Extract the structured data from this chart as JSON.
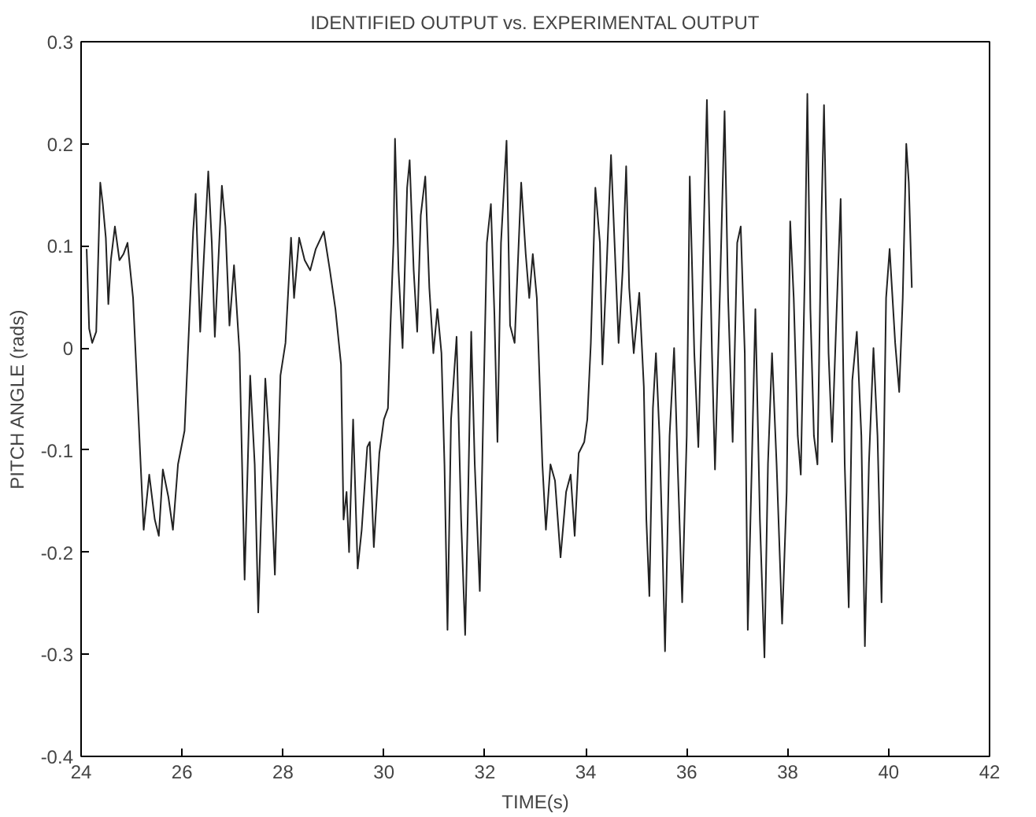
{
  "chart_data": {
    "type": "line",
    "title": "IDENTIFIED OUTPUT vs. EXPERIMENTAL OUTPUT",
    "xlabel": "TIME(s)",
    "ylabel": "PITCH ANGLE (rads)",
    "xlim": [
      24,
      42
    ],
    "xticks": [
      24,
      26,
      28,
      30,
      32,
      34,
      36,
      38,
      40,
      42
    ],
    "ylim": [
      -0.4,
      0.3
    ],
    "yticks": [
      -0.4,
      -0.3,
      -0.2,
      -0.1,
      0,
      0.1,
      0.2,
      0.3
    ],
    "grid": false,
    "series": [
      {
        "color": "#222222",
        "x": [
          24.11,
          24.16,
          24.22,
          24.3,
          24.38,
          24.43,
          24.49,
          24.54,
          24.59,
          24.67,
          24.76,
          24.84,
          24.92,
          25.03,
          25.08,
          25.17,
          25.24,
          25.35,
          25.46,
          25.54,
          25.62,
          25.73,
          25.82,
          25.92,
          26.05,
          26.14,
          26.22,
          26.27,
          26.36,
          26.43,
          26.52,
          26.59,
          26.65,
          26.79,
          26.86,
          26.94,
          27.03,
          27.14,
          27.19,
          27.24,
          27.35,
          27.44,
          27.51,
          27.65,
          27.73,
          27.84,
          27.95,
          28.05,
          28.16,
          28.22,
          28.32,
          28.43,
          28.54,
          28.65,
          28.81,
          28.93,
          29.04,
          29.15,
          29.2,
          29.26,
          29.31,
          29.39,
          29.48,
          29.56,
          29.67,
          29.72,
          29.8,
          29.91,
          30.0,
          30.08,
          30.13,
          30.19,
          30.22,
          30.29,
          30.37,
          30.46,
          30.51,
          30.59,
          30.66,
          30.73,
          30.82,
          30.9,
          30.98,
          31.06,
          31.14,
          31.2,
          31.26,
          31.33,
          31.44,
          31.53,
          31.61,
          31.66,
          31.73,
          31.8,
          31.9,
          31.97,
          32.04,
          32.12,
          32.19,
          32.25,
          32.32,
          32.43,
          32.5,
          32.59,
          32.72,
          32.81,
          32.88,
          32.95,
          33.03,
          33.14,
          33.21,
          33.3,
          33.39,
          33.5,
          33.61,
          33.7,
          33.78,
          33.86,
          33.97,
          34.03,
          34.1,
          34.19,
          34.28,
          34.33,
          34.41,
          34.5,
          34.57,
          34.65,
          34.73,
          34.8,
          34.86,
          34.95,
          35.06,
          35.15,
          35.2,
          35.26,
          35.33,
          35.39,
          35.46,
          35.52,
          35.57,
          35.66,
          35.75,
          35.82,
          35.91,
          36.0,
          36.06,
          36.15,
          36.23,
          36.31,
          36.4,
          36.5,
          36.56,
          36.66,
          36.75,
          36.82,
          36.91,
          37.0,
          37.07,
          37.15,
          37.21,
          37.29,
          37.36,
          37.45,
          37.54,
          37.61,
          37.69,
          37.78,
          37.89,
          37.98,
          38.05,
          38.12,
          38.2,
          38.26,
          38.34,
          38.39,
          38.45,
          38.52,
          38.59,
          38.67,
          38.72,
          38.81,
          38.88,
          38.96,
          39.05,
          39.13,
          39.21,
          39.28,
          39.37,
          39.46,
          39.53,
          39.61,
          39.7,
          39.78,
          39.86,
          39.95,
          40.02,
          40.13,
          40.21,
          40.28,
          40.35,
          40.4,
          40.46
        ],
        "values": [
          0.097,
          0.019,
          0.005,
          0.016,
          0.162,
          0.141,
          0.108,
          0.043,
          0.086,
          0.119,
          0.086,
          0.092,
          0.103,
          0.049,
          -0.005,
          -0.103,
          -0.178,
          -0.124,
          -0.168,
          -0.184,
          -0.119,
          -0.146,
          -0.178,
          -0.114,
          -0.081,
          0.022,
          0.114,
          0.151,
          0.016,
          0.086,
          0.173,
          0.103,
          0.011,
          0.159,
          0.119,
          0.022,
          0.081,
          -0.005,
          -0.114,
          -0.227,
          -0.027,
          -0.114,
          -0.259,
          -0.03,
          -0.092,
          -0.222,
          -0.027,
          0.005,
          0.108,
          0.049,
          0.108,
          0.086,
          0.076,
          0.097,
          0.114,
          0.076,
          0.038,
          -0.016,
          -0.168,
          -0.141,
          -0.2,
          -0.07,
          -0.216,
          -0.178,
          -0.097,
          -0.092,
          -0.195,
          -0.103,
          -0.07,
          -0.059,
          0.022,
          0.103,
          0.205,
          0.076,
          0.0,
          0.157,
          0.184,
          0.076,
          0.016,
          0.13,
          0.168,
          0.059,
          -0.005,
          0.038,
          -0.005,
          -0.114,
          -0.276,
          -0.07,
          0.011,
          -0.168,
          -0.281,
          -0.168,
          0.016,
          -0.114,
          -0.238,
          -0.059,
          0.103,
          0.141,
          0.032,
          -0.092,
          0.103,
          0.203,
          0.022,
          0.005,
          0.162,
          0.092,
          0.049,
          0.092,
          0.049,
          -0.114,
          -0.178,
          -0.114,
          -0.13,
          -0.205,
          -0.141,
          -0.124,
          -0.184,
          -0.103,
          -0.092,
          -0.07,
          0.005,
          0.157,
          0.103,
          -0.016,
          0.076,
          0.189,
          0.103,
          0.005,
          0.076,
          0.178,
          0.059,
          -0.005,
          0.054,
          -0.038,
          -0.168,
          -0.243,
          -0.059,
          -0.005,
          -0.086,
          -0.195,
          -0.297,
          -0.086,
          0.0,
          -0.114,
          -0.249,
          -0.086,
          0.168,
          -0.005,
          -0.097,
          0.059,
          0.243,
          -0.005,
          -0.119,
          0.059,
          0.232,
          0.049,
          -0.092,
          0.103,
          0.119,
          -0.005,
          -0.276,
          -0.113,
          0.038,
          -0.168,
          -0.303,
          -0.113,
          -0.005,
          -0.113,
          -0.27,
          -0.141,
          0.124,
          0.049,
          -0.086,
          -0.124,
          0.076,
          0.249,
          0.038,
          -0.086,
          -0.114,
          0.13,
          0.238,
          -0.005,
          -0.092,
          0.022,
          0.146,
          -0.113,
          -0.254,
          -0.032,
          0.016,
          -0.086,
          -0.292,
          -0.113,
          0.0,
          -0.086,
          -0.249,
          0.049,
          0.097,
          0.005,
          -0.043,
          0.049,
          0.2,
          0.162,
          0.059
        ]
      }
    ]
  }
}
